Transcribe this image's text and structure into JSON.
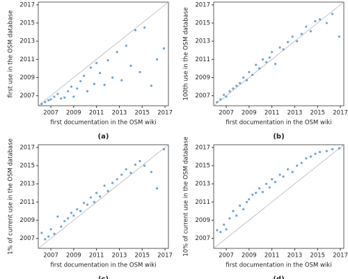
{
  "chart_data": [
    {
      "type": "scatter",
      "caption": "(a)",
      "xlabel": "first documentation in the OSM wiki",
      "ylabel": "first use in the OSM database",
      "color": "#3a86c4",
      "x": [
        2006.2,
        2006.5,
        2006.8,
        2007.0,
        2007.3,
        2007.6,
        2007.9,
        2008.2,
        2008.5,
        2008.8,
        2009.0,
        2009.3,
        2009.6,
        2009.9,
        2010.2,
        2010.5,
        2010.8,
        2011.0,
        2011.3,
        2011.7,
        2012.0,
        2012.4,
        2012.8,
        2013.2,
        2013.6,
        2014.0,
        2014.4,
        2014.8,
        2015.2,
        2015.8,
        2016.3,
        2016.9
      ],
      "y": [
        2006.1,
        2006.3,
        2006.5,
        2006.6,
        2006.9,
        2007.2,
        2006.7,
        2006.8,
        2007.5,
        2008.0,
        2006.9,
        2007.8,
        2008.6,
        2009.2,
        2007.5,
        2010.1,
        2008.3,
        2010.6,
        2009.5,
        2008.2,
        2010.9,
        2009.0,
        2011.8,
        2008.7,
        2012.5,
        2010.3,
        2014.2,
        2009.6,
        2014.5,
        2008.1,
        2011.0,
        2012.2
      ],
      "xlim": [
        2005.9,
        2017.3
      ],
      "ylim": [
        2005.9,
        2017.3
      ],
      "xticks": [
        2007,
        2009,
        2011,
        2013,
        2015,
        2017
      ],
      "yticks": [
        2007,
        2009,
        2011,
        2013,
        2015,
        2017
      ]
    },
    {
      "type": "scatter",
      "caption": "(b)",
      "xlabel": "first documentation in the OSM wiki",
      "ylabel": "100th use in the OSM database",
      "color": "#3a86c4",
      "x": [
        2006.2,
        2006.5,
        2006.8,
        2007.0,
        2007.3,
        2007.6,
        2007.9,
        2008.2,
        2008.5,
        2008.8,
        2009.0,
        2009.3,
        2009.6,
        2009.9,
        2010.2,
        2010.5,
        2010.8,
        2011.0,
        2011.3,
        2011.7,
        2012.0,
        2012.4,
        2012.8,
        2013.2,
        2013.6,
        2014.0,
        2014.4,
        2014.8,
        2015.2,
        2015.8,
        2016.3,
        2016.9
      ],
      "y": [
        2006.3,
        2006.6,
        2007.1,
        2006.9,
        2007.5,
        2007.8,
        2008.1,
        2008.4,
        2009.0,
        2008.7,
        2009.6,
        2009.3,
        2010.4,
        2010.0,
        2011.0,
        2010.7,
        2011.2,
        2011.8,
        2010.5,
        2012.3,
        2012.1,
        2012.9,
        2013.5,
        2013.0,
        2013.8,
        2014.6,
        2014.1,
        2015.2,
        2015.4,
        2015.0,
        2016.0,
        2013.5
      ],
      "xlim": [
        2005.9,
        2017.3
      ],
      "ylim": [
        2005.9,
        2017.3
      ],
      "xticks": [
        2007,
        2009,
        2011,
        2013,
        2015,
        2017
      ],
      "yticks": [
        2007,
        2009,
        2011,
        2013,
        2015,
        2017
      ]
    },
    {
      "type": "scatter",
      "caption": "(c)",
      "xlabel": "first documentation in the OSM wiki",
      "ylabel": "1% of current use in the OSM database",
      "color": "#3a86c4",
      "x": [
        2006.2,
        2006.5,
        2006.8,
        2007.0,
        2007.3,
        2007.6,
        2007.9,
        2008.2,
        2008.5,
        2008.8,
        2009.0,
        2009.3,
        2009.6,
        2009.9,
        2010.2,
        2010.5,
        2010.8,
        2011.0,
        2011.3,
        2011.7,
        2012.0,
        2012.4,
        2012.8,
        2013.2,
        2013.6,
        2014.0,
        2014.4,
        2014.8,
        2015.2,
        2015.8,
        2016.3,
        2016.9
      ],
      "y": [
        2007.6,
        2006.9,
        2007.2,
        2008.0,
        2007.5,
        2009.4,
        2008.3,
        2008.9,
        2009.2,
        2009.8,
        2009.5,
        2010.2,
        2010.0,
        2010.9,
        2010.7,
        2011.5,
        2011.0,
        2012.0,
        2011.6,
        2012.8,
        2012.2,
        2013.1,
        2013.5,
        2014.0,
        2014.6,
        2014.2,
        2015.1,
        2015.5,
        2015.0,
        2014.3,
        2012.5,
        2016.8
      ],
      "xlim": [
        2005.9,
        2017.3
      ],
      "ylim": [
        2005.9,
        2017.3
      ],
      "xticks": [
        2007,
        2009,
        2011,
        2013,
        2015,
        2017
      ],
      "yticks": [
        2007,
        2009,
        2011,
        2013,
        2015,
        2017
      ]
    },
    {
      "type": "scatter",
      "caption": "(d)",
      "xlabel": "first documentation in the OSM wiki",
      "ylabel": "10% of current use in the OSM database",
      "color": "#3a86c4",
      "x": [
        2006.2,
        2006.5,
        2006.8,
        2007.0,
        2007.3,
        2007.6,
        2007.9,
        2008.2,
        2008.5,
        2008.8,
        2009.0,
        2009.3,
        2009.6,
        2009.9,
        2010.2,
        2010.5,
        2010.8,
        2011.0,
        2011.3,
        2011.7,
        2012.0,
        2012.4,
        2012.8,
        2013.2,
        2013.6,
        2014.0,
        2014.4,
        2014.8,
        2015.2,
        2015.8,
        2016.3,
        2016.9
      ],
      "y": [
        2007.9,
        2007.7,
        2008.5,
        2008.0,
        2009.2,
        2010.0,
        2009.5,
        2010.6,
        2010.2,
        2011.0,
        2011.3,
        2011.8,
        2012.0,
        2012.5,
        2012.1,
        2013.0,
        2012.6,
        2013.5,
        2013.2,
        2014.0,
        2013.8,
        2014.6,
        2014.3,
        2015.0,
        2015.3,
        2015.8,
        2016.0,
        2016.3,
        2016.5,
        2016.6,
        2016.8,
        2016.9
      ],
      "xlim": [
        2005.9,
        2017.3
      ],
      "ylim": [
        2005.9,
        2017.3
      ],
      "xticks": [
        2007,
        2009,
        2011,
        2013,
        2015,
        2017
      ],
      "yticks": [
        2007,
        2009,
        2011,
        2013,
        2015,
        2017
      ]
    }
  ]
}
